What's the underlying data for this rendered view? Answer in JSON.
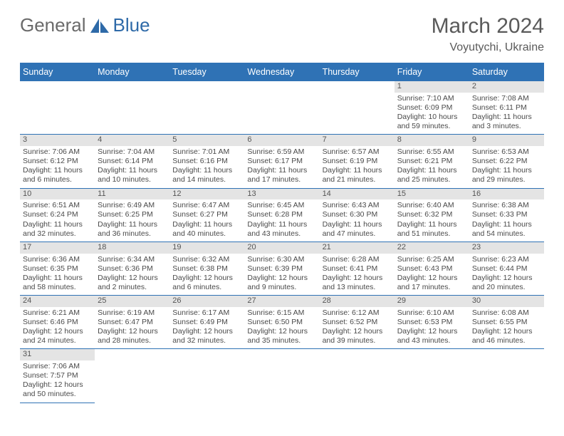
{
  "logo": {
    "text_gray": "General",
    "text_blue": "Blue"
  },
  "title": {
    "month": "March 2024",
    "location": "Voyutychi, Ukraine"
  },
  "colors": {
    "header_bg": "#2f72b5",
    "header_fg": "#ffffff",
    "cell_border": "#2f72b5",
    "daynum_bg": "#e4e4e4",
    "text": "#4a4a4a"
  },
  "day_labels": [
    "Sunday",
    "Monday",
    "Tuesday",
    "Wednesday",
    "Thursday",
    "Friday",
    "Saturday"
  ],
  "grid": {
    "lead_blanks": 5,
    "days": [
      {
        "n": 1,
        "sr": "7:10 AM",
        "ss": "6:09 PM",
        "dl": "10 hours and 59 minutes."
      },
      {
        "n": 2,
        "sr": "7:08 AM",
        "ss": "6:11 PM",
        "dl": "11 hours and 3 minutes."
      },
      {
        "n": 3,
        "sr": "7:06 AM",
        "ss": "6:12 PM",
        "dl": "11 hours and 6 minutes."
      },
      {
        "n": 4,
        "sr": "7:04 AM",
        "ss": "6:14 PM",
        "dl": "11 hours and 10 minutes."
      },
      {
        "n": 5,
        "sr": "7:01 AM",
        "ss": "6:16 PM",
        "dl": "11 hours and 14 minutes."
      },
      {
        "n": 6,
        "sr": "6:59 AM",
        "ss": "6:17 PM",
        "dl": "11 hours and 17 minutes."
      },
      {
        "n": 7,
        "sr": "6:57 AM",
        "ss": "6:19 PM",
        "dl": "11 hours and 21 minutes."
      },
      {
        "n": 8,
        "sr": "6:55 AM",
        "ss": "6:21 PM",
        "dl": "11 hours and 25 minutes."
      },
      {
        "n": 9,
        "sr": "6:53 AM",
        "ss": "6:22 PM",
        "dl": "11 hours and 29 minutes."
      },
      {
        "n": 10,
        "sr": "6:51 AM",
        "ss": "6:24 PM",
        "dl": "11 hours and 32 minutes."
      },
      {
        "n": 11,
        "sr": "6:49 AM",
        "ss": "6:25 PM",
        "dl": "11 hours and 36 minutes."
      },
      {
        "n": 12,
        "sr": "6:47 AM",
        "ss": "6:27 PM",
        "dl": "11 hours and 40 minutes."
      },
      {
        "n": 13,
        "sr": "6:45 AM",
        "ss": "6:28 PM",
        "dl": "11 hours and 43 minutes."
      },
      {
        "n": 14,
        "sr": "6:43 AM",
        "ss": "6:30 PM",
        "dl": "11 hours and 47 minutes."
      },
      {
        "n": 15,
        "sr": "6:40 AM",
        "ss": "6:32 PM",
        "dl": "11 hours and 51 minutes."
      },
      {
        "n": 16,
        "sr": "6:38 AM",
        "ss": "6:33 PM",
        "dl": "11 hours and 54 minutes."
      },
      {
        "n": 17,
        "sr": "6:36 AM",
        "ss": "6:35 PM",
        "dl": "11 hours and 58 minutes."
      },
      {
        "n": 18,
        "sr": "6:34 AM",
        "ss": "6:36 PM",
        "dl": "12 hours and 2 minutes."
      },
      {
        "n": 19,
        "sr": "6:32 AM",
        "ss": "6:38 PM",
        "dl": "12 hours and 6 minutes."
      },
      {
        "n": 20,
        "sr": "6:30 AM",
        "ss": "6:39 PM",
        "dl": "12 hours and 9 minutes."
      },
      {
        "n": 21,
        "sr": "6:28 AM",
        "ss": "6:41 PM",
        "dl": "12 hours and 13 minutes."
      },
      {
        "n": 22,
        "sr": "6:25 AM",
        "ss": "6:43 PM",
        "dl": "12 hours and 17 minutes."
      },
      {
        "n": 23,
        "sr": "6:23 AM",
        "ss": "6:44 PM",
        "dl": "12 hours and 20 minutes."
      },
      {
        "n": 24,
        "sr": "6:21 AM",
        "ss": "6:46 PM",
        "dl": "12 hours and 24 minutes."
      },
      {
        "n": 25,
        "sr": "6:19 AM",
        "ss": "6:47 PM",
        "dl": "12 hours and 28 minutes."
      },
      {
        "n": 26,
        "sr": "6:17 AM",
        "ss": "6:49 PM",
        "dl": "12 hours and 32 minutes."
      },
      {
        "n": 27,
        "sr": "6:15 AM",
        "ss": "6:50 PM",
        "dl": "12 hours and 35 minutes."
      },
      {
        "n": 28,
        "sr": "6:12 AM",
        "ss": "6:52 PM",
        "dl": "12 hours and 39 minutes."
      },
      {
        "n": 29,
        "sr": "6:10 AM",
        "ss": "6:53 PM",
        "dl": "12 hours and 43 minutes."
      },
      {
        "n": 30,
        "sr": "6:08 AM",
        "ss": "6:55 PM",
        "dl": "12 hours and 46 minutes."
      },
      {
        "n": 31,
        "sr": "7:06 AM",
        "ss": "7:57 PM",
        "dl": "12 hours and 50 minutes."
      }
    ],
    "labels": {
      "sunrise": "Sunrise:",
      "sunset": "Sunset:",
      "daylight": "Daylight:"
    }
  }
}
